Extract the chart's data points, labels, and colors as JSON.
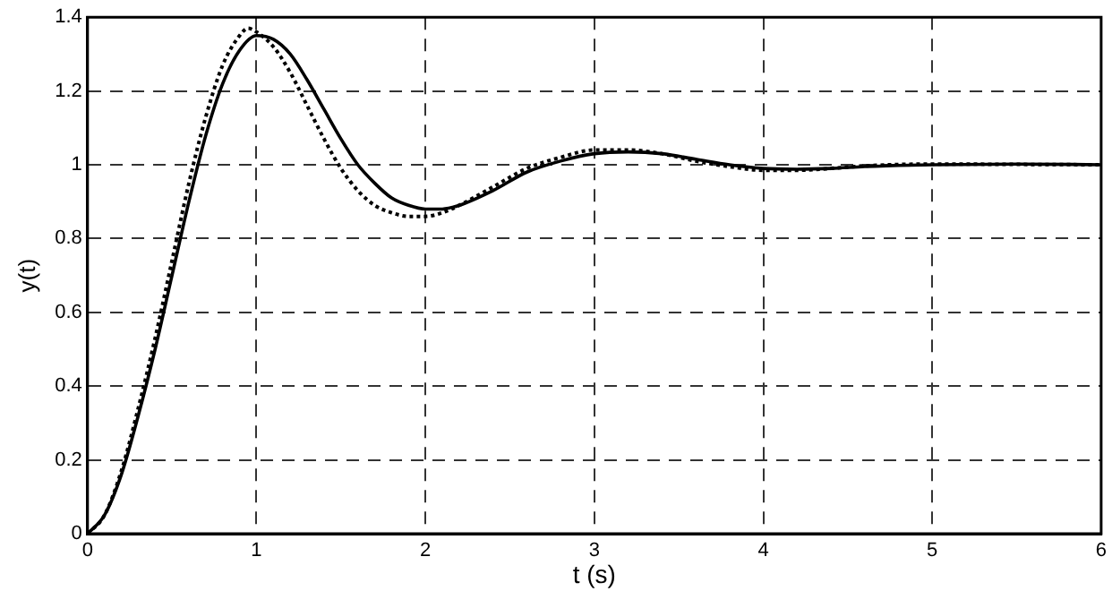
{
  "chart_data": {
    "type": "line",
    "xlabel": "t (s)",
    "ylabel": "y(t)",
    "xlim": [
      0,
      6
    ],
    "xticks": [
      0,
      1,
      2,
      3,
      4,
      5,
      6
    ],
    "ylim": [
      0,
      1.4
    ],
    "yticks": [
      0,
      0.2,
      0.4,
      0.6,
      0.8,
      1,
      1.2,
      1.4
    ],
    "grid": true,
    "legend": false,
    "marker": "none",
    "series": [
      {
        "color": "#000000",
        "line_style": "solid",
        "x": [
          0,
          0.1,
          0.2,
          0.3,
          0.4,
          0.5,
          0.6,
          0.7,
          0.8,
          0.9,
          1.0,
          1.1,
          1.2,
          1.3,
          1.4,
          1.5,
          1.6,
          1.7,
          1.8,
          1.9,
          2.0,
          2.1,
          2.2,
          2.4,
          2.6,
          2.8,
          3.0,
          3.2,
          3.4,
          3.6,
          3.8,
          4.0,
          4.2,
          4.4,
          4.6,
          5.0,
          5.5,
          6.0
        ],
        "values": [
          0,
          0.05,
          0.16,
          0.32,
          0.5,
          0.7,
          0.9,
          1.08,
          1.22,
          1.31,
          1.35,
          1.34,
          1.3,
          1.23,
          1.15,
          1.07,
          1.0,
          0.95,
          0.91,
          0.89,
          0.88,
          0.88,
          0.89,
          0.93,
          0.98,
          1.01,
          1.03,
          1.035,
          1.03,
          1.015,
          1.0,
          0.99,
          0.988,
          0.99,
          0.995,
          1.0,
          1.002,
          1.0
        ]
      },
      {
        "color": "#000000",
        "line_style": "dotted",
        "x": [
          0,
          0.1,
          0.2,
          0.3,
          0.4,
          0.5,
          0.6,
          0.7,
          0.8,
          0.9,
          0.95,
          1.0,
          1.1,
          1.2,
          1.3,
          1.4,
          1.5,
          1.6,
          1.7,
          1.8,
          1.9,
          2.0,
          2.1,
          2.2,
          2.4,
          2.6,
          2.8,
          3.0,
          3.2,
          3.4,
          3.6,
          3.8,
          4.0,
          4.2,
          4.4,
          4.6,
          5.0,
          5.5,
          6.0
        ],
        "values": [
          0,
          0.05,
          0.17,
          0.34,
          0.53,
          0.74,
          0.95,
          1.13,
          1.27,
          1.35,
          1.37,
          1.36,
          1.32,
          1.25,
          1.16,
          1.07,
          0.99,
          0.93,
          0.89,
          0.87,
          0.86,
          0.86,
          0.87,
          0.89,
          0.94,
          0.99,
          1.02,
          1.04,
          1.04,
          1.03,
          1.01,
          0.995,
          0.985,
          0.985,
          0.99,
          0.997,
          1.002,
          1.001,
          1.0
        ]
      }
    ]
  }
}
